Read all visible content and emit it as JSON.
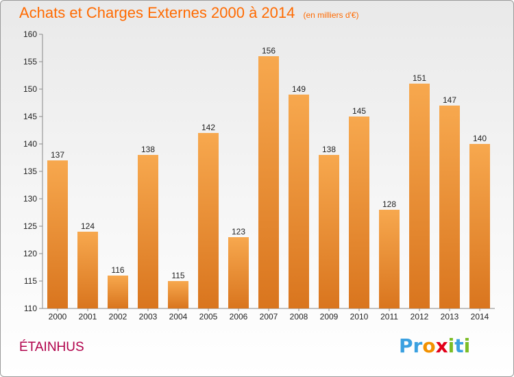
{
  "header": {
    "title": "Achats et Charges Externes 2000 à 2014",
    "subtitle": "(en milliers d'€)"
  },
  "footer": {
    "place": "ÉTAINHUS",
    "logo": [
      "P",
      "r",
      "o",
      "x",
      "i",
      "t",
      "i"
    ],
    "logo_colors": [
      "#3aa0e0",
      "#3aa0e0",
      "#f29100",
      "#e2001a",
      "#7cbd27",
      "#3aa0e0",
      "#7cbd27"
    ]
  },
  "chart_data": {
    "type": "bar",
    "title": "Achats et Charges Externes 2000 à 2014",
    "subtitle": "(en milliers d'€)",
    "categories": [
      "2000",
      "2001",
      "2002",
      "2003",
      "2004",
      "2005",
      "2006",
      "2007",
      "2008",
      "2009",
      "2010",
      "2011",
      "2012",
      "2013",
      "2014"
    ],
    "values": [
      137,
      124,
      116,
      138,
      115,
      142,
      123,
      156,
      149,
      138,
      145,
      128,
      151,
      147,
      140
    ],
    "ylim": [
      110,
      160
    ],
    "yticks": [
      110,
      115,
      120,
      125,
      130,
      135,
      140,
      145,
      150,
      155,
      160
    ],
    "grid": false,
    "bar_color_top": "#f7a84e",
    "bar_color_bottom": "#d9751e"
  }
}
